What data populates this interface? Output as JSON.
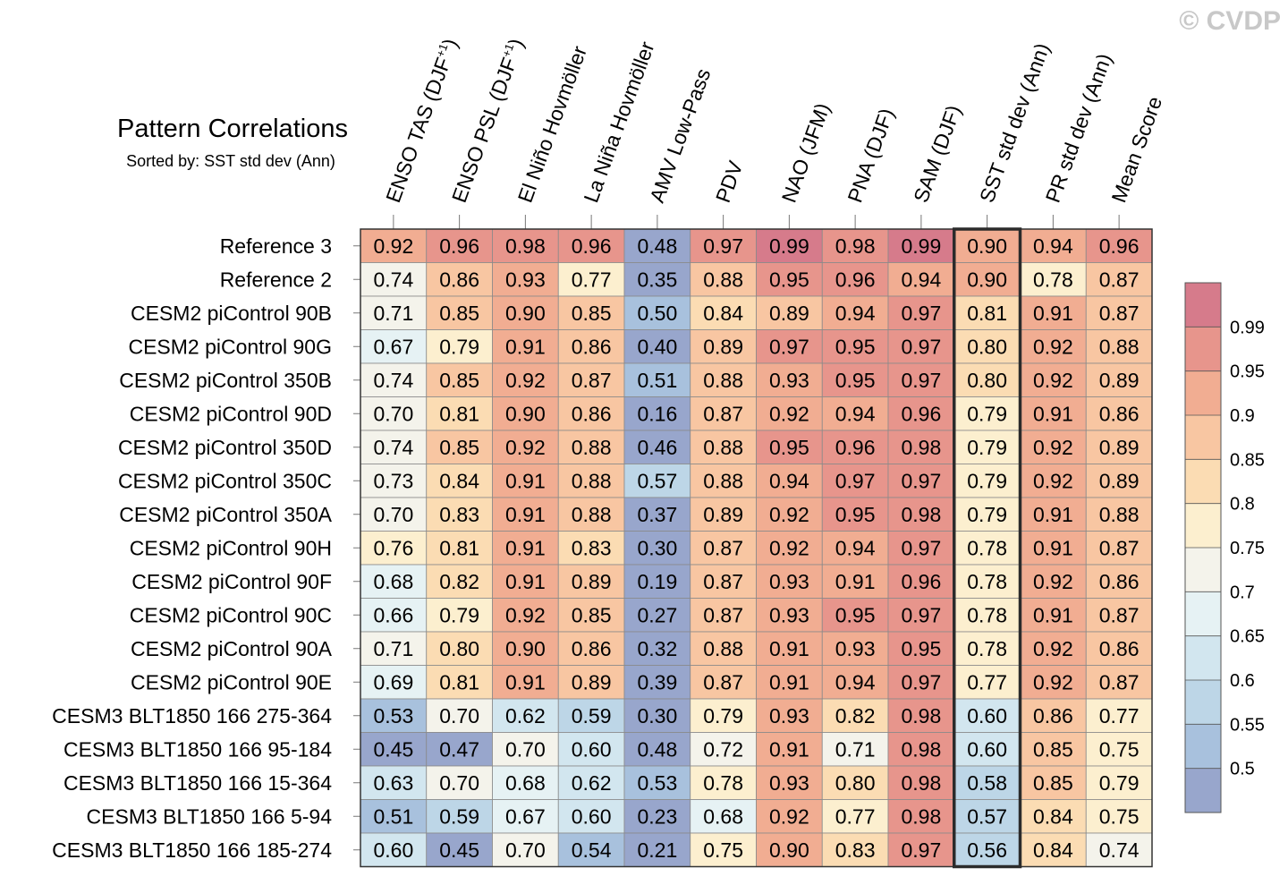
{
  "chart_data": {
    "type": "heatmap",
    "title": "Pattern Correlations",
    "subtitle": "Sorted by: SST std dev (Ann)",
    "copyright": "© CVDP",
    "columns": [
      {
        "main": "ENSO TAS (DJF",
        "sup": "+1",
        "tail": ")"
      },
      {
        "main": "ENSO PSL (DJF",
        "sup": "+1",
        "tail": ")"
      },
      {
        "main": "El Niño Hovmöller",
        "sup": "",
        "tail": ""
      },
      {
        "main": "La Niña Hovmöller",
        "sup": "",
        "tail": ""
      },
      {
        "main": "AMV Low-Pass",
        "sup": "",
        "tail": ""
      },
      {
        "main": "PDV",
        "sup": "",
        "tail": ""
      },
      {
        "main": "NAO (JFM)",
        "sup": "",
        "tail": ""
      },
      {
        "main": "PNA (DJF)",
        "sup": "",
        "tail": ""
      },
      {
        "main": "SAM (DJF)",
        "sup": "",
        "tail": ""
      },
      {
        "main": "SST std dev (Ann)",
        "sup": "",
        "tail": ""
      },
      {
        "main": "PR std dev (Ann)",
        "sup": "",
        "tail": ""
      },
      {
        "main": "Mean Score",
        "sup": "",
        "tail": ""
      }
    ],
    "highlighted_column": 9,
    "rows": [
      {
        "name": "Reference 3",
        "values": [
          "0.92",
          "0.96",
          "0.98",
          "0.96",
          "0.48",
          "0.97",
          "0.99",
          "0.98",
          "0.99",
          "0.90",
          "0.94",
          "0.96"
        ]
      },
      {
        "name": "Reference 2",
        "values": [
          "0.74",
          "0.86",
          "0.93",
          "0.77",
          "0.35",
          "0.88",
          "0.95",
          "0.96",
          "0.94",
          "0.90",
          "0.78",
          "0.87"
        ]
      },
      {
        "name": "CESM2 piControl 90B",
        "values": [
          "0.71",
          "0.85",
          "0.90",
          "0.85",
          "0.50",
          "0.84",
          "0.89",
          "0.94",
          "0.97",
          "0.81",
          "0.91",
          "0.87"
        ]
      },
      {
        "name": "CESM2 piControl 90G",
        "values": [
          "0.67",
          "0.79",
          "0.91",
          "0.86",
          "0.40",
          "0.89",
          "0.97",
          "0.95",
          "0.97",
          "0.80",
          "0.92",
          "0.88"
        ]
      },
      {
        "name": "CESM2 piControl 350B",
        "values": [
          "0.74",
          "0.85",
          "0.92",
          "0.87",
          "0.51",
          "0.88",
          "0.93",
          "0.95",
          "0.97",
          "0.80",
          "0.92",
          "0.89"
        ]
      },
      {
        "name": "CESM2 piControl 90D",
        "values": [
          "0.70",
          "0.81",
          "0.90",
          "0.86",
          "0.16",
          "0.87",
          "0.92",
          "0.94",
          "0.96",
          "0.79",
          "0.91",
          "0.86"
        ]
      },
      {
        "name": "CESM2 piControl 350D",
        "values": [
          "0.74",
          "0.85",
          "0.92",
          "0.88",
          "0.46",
          "0.88",
          "0.95",
          "0.96",
          "0.98",
          "0.79",
          "0.92",
          "0.89"
        ]
      },
      {
        "name": "CESM2 piControl 350C",
        "values": [
          "0.73",
          "0.84",
          "0.91",
          "0.88",
          "0.57",
          "0.88",
          "0.94",
          "0.97",
          "0.97",
          "0.79",
          "0.92",
          "0.89"
        ]
      },
      {
        "name": "CESM2 piControl 350A",
        "values": [
          "0.70",
          "0.83",
          "0.91",
          "0.88",
          "0.37",
          "0.89",
          "0.92",
          "0.95",
          "0.98",
          "0.79",
          "0.91",
          "0.88"
        ]
      },
      {
        "name": "CESM2 piControl 90H",
        "values": [
          "0.76",
          "0.81",
          "0.91",
          "0.83",
          "0.30",
          "0.87",
          "0.92",
          "0.94",
          "0.97",
          "0.78",
          "0.91",
          "0.87"
        ]
      },
      {
        "name": "CESM2 piControl 90F",
        "values": [
          "0.68",
          "0.82",
          "0.91",
          "0.89",
          "0.19",
          "0.87",
          "0.93",
          "0.91",
          "0.96",
          "0.78",
          "0.92",
          "0.86"
        ]
      },
      {
        "name": "CESM2 piControl 90C",
        "values": [
          "0.66",
          "0.79",
          "0.92",
          "0.85",
          "0.27",
          "0.87",
          "0.93",
          "0.95",
          "0.97",
          "0.78",
          "0.91",
          "0.87"
        ]
      },
      {
        "name": "CESM2 piControl 90A",
        "values": [
          "0.71",
          "0.80",
          "0.90",
          "0.86",
          "0.32",
          "0.88",
          "0.91",
          "0.93",
          "0.95",
          "0.78",
          "0.92",
          "0.86"
        ]
      },
      {
        "name": "CESM2 piControl 90E",
        "values": [
          "0.69",
          "0.81",
          "0.91",
          "0.89",
          "0.39",
          "0.87",
          "0.91",
          "0.94",
          "0.97",
          "0.77",
          "0.92",
          "0.87"
        ]
      },
      {
        "name": "CESM3 BLT1850 166 275-364",
        "values": [
          "0.53",
          "0.70",
          "0.62",
          "0.59",
          "0.30",
          "0.79",
          "0.93",
          "0.82",
          "0.98",
          "0.60",
          "0.86",
          "0.77"
        ]
      },
      {
        "name": "CESM3 BLT1850 166 95-184",
        "values": [
          "0.45",
          "0.47",
          "0.70",
          "0.60",
          "0.48",
          "0.72",
          "0.91",
          "0.71",
          "0.98",
          "0.60",
          "0.85",
          "0.75"
        ]
      },
      {
        "name": "CESM3 BLT1850 166 15-364",
        "values": [
          "0.63",
          "0.70",
          "0.68",
          "0.62",
          "0.53",
          "0.78",
          "0.93",
          "0.80",
          "0.98",
          "0.58",
          "0.85",
          "0.79"
        ]
      },
      {
        "name": "CESM3 BLT1850 166 5-94",
        "values": [
          "0.51",
          "0.59",
          "0.67",
          "0.60",
          "0.23",
          "0.68",
          "0.92",
          "0.77",
          "0.98",
          "0.57",
          "0.84",
          "0.75"
        ]
      },
      {
        "name": "CESM3 BLT1850 166 185-274",
        "values": [
          "0.60",
          "0.45",
          "0.70",
          "0.54",
          "0.21",
          "0.75",
          "0.90",
          "0.83",
          "0.97",
          "0.56",
          "0.84",
          "0.74"
        ]
      }
    ],
    "colorbar": {
      "levels": [
        0.5,
        0.55,
        0.6,
        0.65,
        0.7,
        0.75,
        0.8,
        0.85,
        0.9,
        0.95,
        0.99
      ],
      "labels": [
        "0.5",
        "0.55",
        "0.6",
        "0.65",
        "0.7",
        "0.75",
        "0.8",
        "0.85",
        "0.9",
        "0.95",
        "0.99"
      ],
      "colors": [
        "#98a6cc",
        "#a8c1dd",
        "#bdd6e7",
        "#d2e6ef",
        "#e6f2f4",
        "#f4f3eb",
        "#fcefcf",
        "#fbdcb3",
        "#f8c6a2",
        "#f1ad92",
        "#e7958c",
        "#d67b8b"
      ]
    }
  }
}
